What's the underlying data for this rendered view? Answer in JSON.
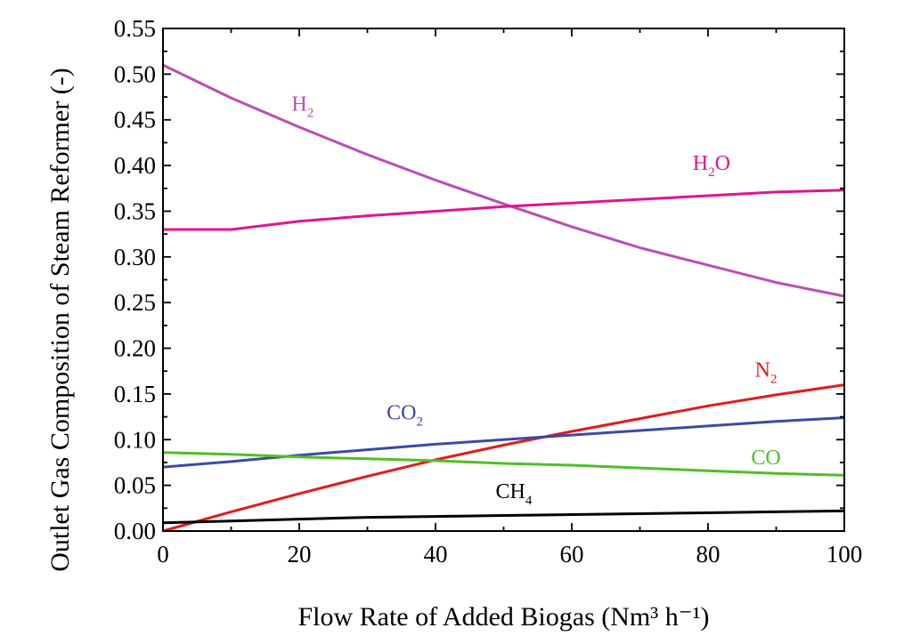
{
  "chart_data": {
    "type": "line",
    "xlabel": "Flow Rate of Added Biogas (Nm³ h⁻¹)",
    "ylabel": "Outlet Gas Composition of Steam Reformer (-)",
    "xlim": [
      0,
      100
    ],
    "ylim": [
      0,
      0.55
    ],
    "x_ticks": [
      0,
      20,
      40,
      60,
      80,
      100
    ],
    "y_ticks": [
      0.0,
      0.05,
      0.1,
      0.15,
      0.2,
      0.25,
      0.3,
      0.35,
      0.4,
      0.45,
      0.5,
      0.55
    ],
    "x_tick_labels": [
      "0",
      "20",
      "40",
      "60",
      "80",
      "100"
    ],
    "y_tick_labels": [
      "0.00",
      "0.05",
      "0.10",
      "0.15",
      "0.20",
      "0.25",
      "0.30",
      "0.35",
      "0.40",
      "0.45",
      "0.50",
      "0.55"
    ],
    "grid": false,
    "series": [
      {
        "name": "H2",
        "label_main": "H",
        "label_sub": "2",
        "label_tail": "",
        "color": "#b84fb4",
        "label_at": [
          20.5,
          0.46
        ],
        "x": [
          0,
          10,
          20,
          30,
          40,
          50,
          60,
          70,
          80,
          90,
          100
        ],
        "y": [
          0.51,
          0.474,
          0.442,
          0.412,
          0.384,
          0.358,
          0.333,
          0.31,
          0.291,
          0.272,
          0.257
        ]
      },
      {
        "name": "H2O",
        "label_main": "H",
        "label_sub": "2",
        "label_tail": "O",
        "color": "#e0158c",
        "label_at": [
          80.5,
          0.395
        ],
        "x": [
          0,
          10,
          20,
          30,
          40,
          50,
          60,
          70,
          80,
          90,
          100
        ],
        "y": [
          0.33,
          0.33,
          0.339,
          0.345,
          0.35,
          0.355,
          0.359,
          0.363,
          0.367,
          0.371,
          0.373
        ]
      },
      {
        "name": "N2",
        "label_main": "N",
        "label_sub": "2",
        "label_tail": "",
        "color": "#e31a1c",
        "label_at": [
          88.5,
          0.169
        ],
        "x": [
          0,
          10,
          20,
          30,
          40,
          50,
          60,
          70,
          80,
          90,
          100
        ],
        "y": [
          0.0,
          0.021,
          0.041,
          0.06,
          0.078,
          0.094,
          0.109,
          0.123,
          0.137,
          0.149,
          0.16
        ]
      },
      {
        "name": "CO2",
        "label_main": "CO",
        "label_sub": "2",
        "label_tail": "",
        "color": "#3a4aa6",
        "label_at": [
          35.5,
          0.122
        ],
        "x": [
          0,
          10,
          20,
          30,
          40,
          50,
          60,
          70,
          80,
          90,
          100
        ],
        "y": [
          0.07,
          0.076,
          0.083,
          0.089,
          0.095,
          0.1,
          0.105,
          0.11,
          0.115,
          0.12,
          0.124
        ]
      },
      {
        "name": "CO",
        "label_main": "CO",
        "label_sub": "",
        "label_tail": "",
        "color": "#4fbf26",
        "label_at": [
          88.5,
          0.073
        ],
        "x": [
          0,
          10,
          20,
          30,
          40,
          50,
          60,
          70,
          80,
          90,
          100
        ],
        "y": [
          0.086,
          0.084,
          0.081,
          0.079,
          0.077,
          0.074,
          0.072,
          0.069,
          0.066,
          0.063,
          0.061
        ]
      },
      {
        "name": "CH4",
        "label_main": "CH",
        "label_sub": "4",
        "label_tail": "",
        "color": "#000000",
        "label_at": [
          51.5,
          0.036
        ],
        "x": [
          0,
          10,
          20,
          30,
          40,
          50,
          60,
          70,
          80,
          90,
          100
        ],
        "y": [
          0.009,
          0.011,
          0.013,
          0.015,
          0.016,
          0.017,
          0.018,
          0.019,
          0.02,
          0.021,
          0.022
        ]
      }
    ]
  }
}
